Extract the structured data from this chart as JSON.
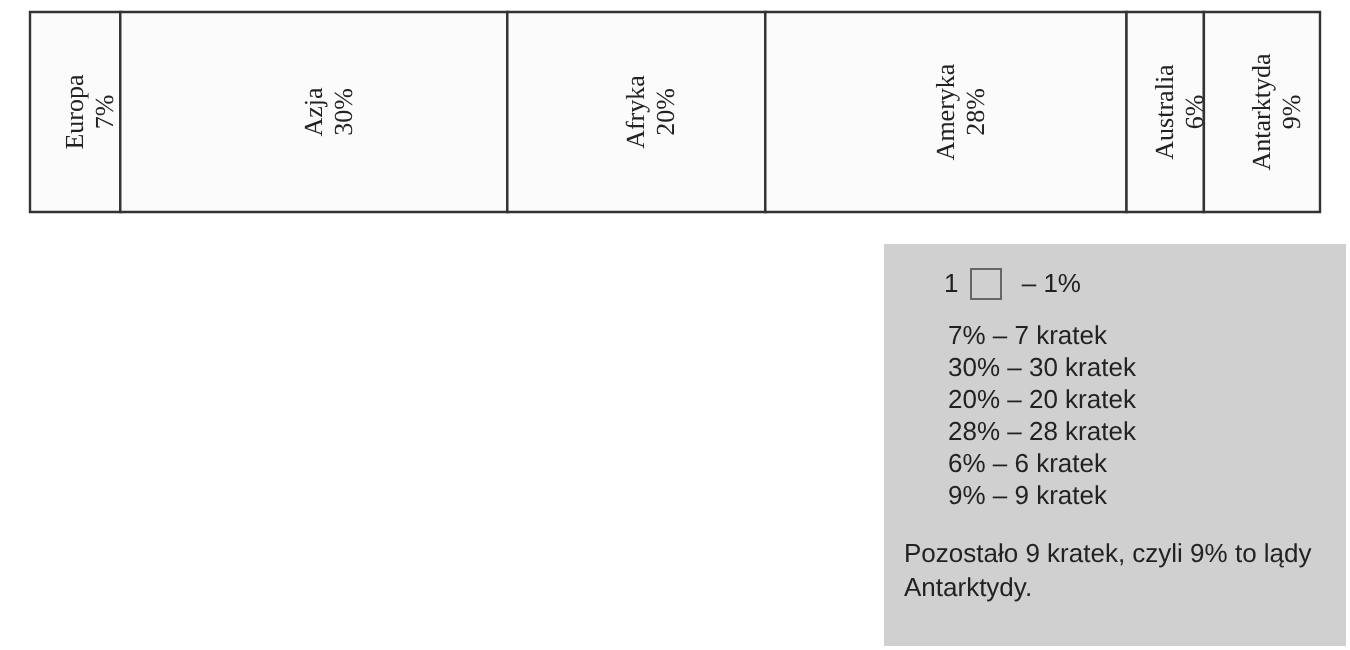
{
  "chart_data": {
    "type": "bar",
    "orientation": "horizontal",
    "stacked": true,
    "categories": [
      null
    ],
    "xlim": [
      0,
      100
    ],
    "series": [
      {
        "name": "Europa",
        "color": "#fcfbfc",
        "values": [
          7
        ],
        "value_labels": [
          "7%"
        ]
      },
      {
        "name": "Azja",
        "color": "#fcfbfc",
        "values": [
          30
        ],
        "value_labels": [
          "30%"
        ]
      },
      {
        "name": "Afryka",
        "color": "#fcfbfc",
        "values": [
          20
        ],
        "value_labels": [
          "20%"
        ]
      },
      {
        "name": "Ameryka",
        "color": "#fcfbfc",
        "values": [
          28
        ],
        "value_labels": [
          "28%"
        ]
      },
      {
        "name": "Australia",
        "color": "#fcfbfc",
        "values": [
          6
        ],
        "value_labels": [
          "6%"
        ]
      },
      {
        "name": "Antarktyda",
        "color": "#fcfbfc",
        "values": [
          9
        ],
        "value_labels": [
          "9%"
        ]
      }
    ],
    "annotations": [
      "1",
      "– 1%",
      "7% – 7 kratek",
      "30% – 30 kratek",
      "20% – 20 kratek",
      "28% – 28 kratek",
      "6% – 6 kratek",
      "9% – 9 kratek",
      "Pozostało 9 kratek, czyli 9% to lądy Antarktydy."
    ]
  }
}
